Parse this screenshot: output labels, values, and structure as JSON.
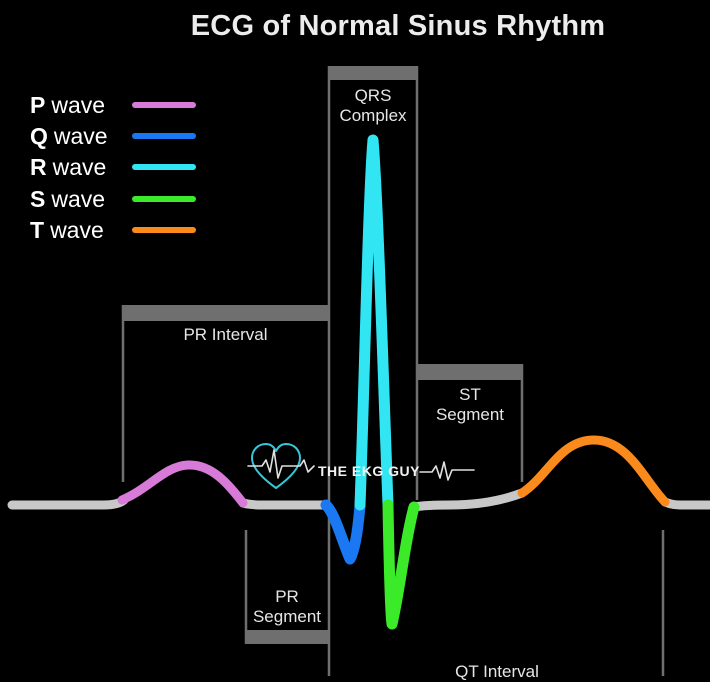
{
  "title": "ECG of Normal Sinus Rhythm",
  "legend": [
    {
      "letter": "P",
      "word": "wave",
      "color": "#d77ad8"
    },
    {
      "letter": "Q",
      "word": "wave",
      "color": "#1a78f2"
    },
    {
      "letter": "R",
      "word": "wave",
      "color": "#31e6f2"
    },
    {
      "letter": "S",
      "word": "wave",
      "color": "#3bea28"
    },
    {
      "letter": "T",
      "word": "wave",
      "color": "#fb8a1c"
    }
  ],
  "labels": {
    "qrs_line1": "QRS",
    "qrs_line2": "Complex",
    "pr_interval": "PR Interval",
    "st_line1": "ST",
    "st_line2": "Segment",
    "pr_segment_line1": "PR",
    "pr_segment_line2": "Segment",
    "qt_interval": "QT Interval"
  },
  "logo": {
    "text": "THE EKG GUY",
    "icon": "heart-ecg-icon",
    "color": "#2fd6e6"
  },
  "colors": {
    "baseline": "#c8c8c8",
    "bracket": "#6f6f6f",
    "background": "#000000"
  }
}
